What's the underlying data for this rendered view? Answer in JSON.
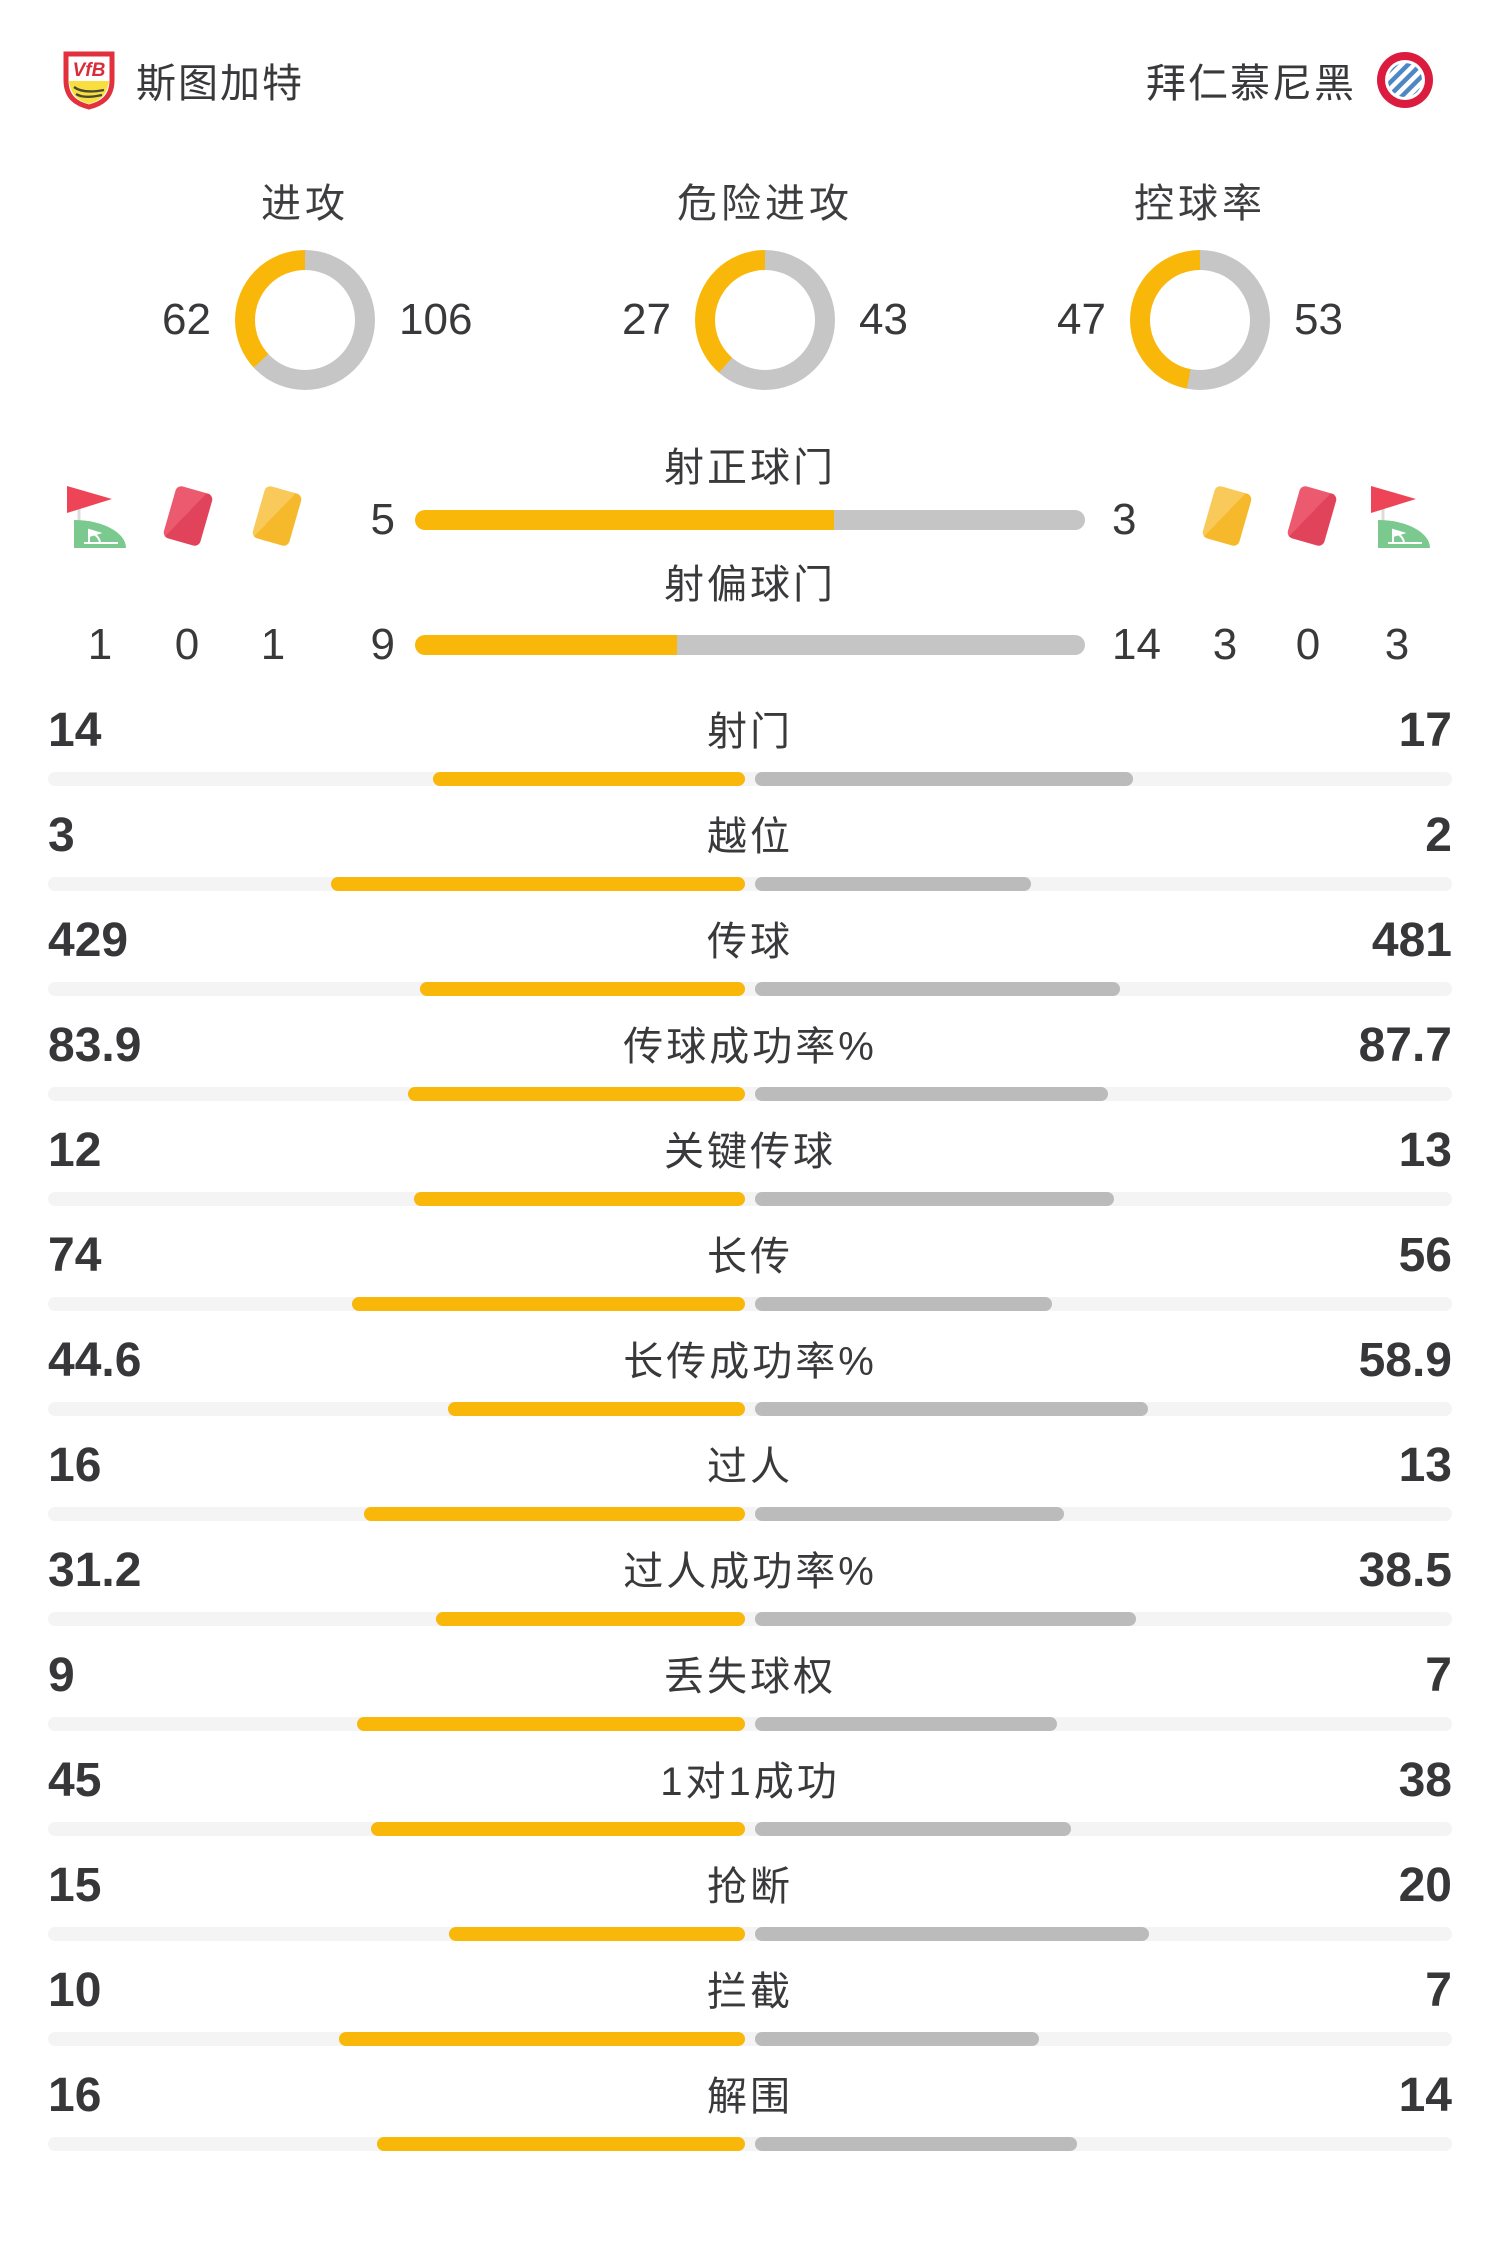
{
  "header": {
    "home_team": "斯图加特",
    "away_team": "拜仁慕尼黑"
  },
  "donuts": [
    {
      "label": "进攻",
      "home": 62,
      "away": 106
    },
    {
      "label": "危险进攻",
      "home": 27,
      "away": 43
    },
    {
      "label": "控球率",
      "home": 47,
      "away": 53
    }
  ],
  "shot_rows": [
    {
      "label": "射正球门",
      "home": 5,
      "away": 3
    },
    {
      "label": "射偏球门",
      "home": 9,
      "away": 14
    }
  ],
  "cards": {
    "home": {
      "corner": 1,
      "red": 0,
      "yellow": 1
    },
    "away": {
      "yellow": 3,
      "red": 0,
      "corner": 3
    }
  },
  "stats": [
    {
      "label": "射门",
      "home": 14,
      "away": 17
    },
    {
      "label": "越位",
      "home": 3,
      "away": 2
    },
    {
      "label": "传球",
      "home": 429,
      "away": 481
    },
    {
      "label": "传球成功率%",
      "home": 83.9,
      "away": 87.7
    },
    {
      "label": "关键传球",
      "home": 12,
      "away": 13
    },
    {
      "label": "长传",
      "home": 74,
      "away": 56
    },
    {
      "label": "长传成功率%",
      "home": 44.6,
      "away": 58.9
    },
    {
      "label": "过人",
      "home": 16,
      "away": 13
    },
    {
      "label": "过人成功率%",
      "home": 31.2,
      "away": 38.5
    },
    {
      "label": "丢失球权",
      "home": 9,
      "away": 7
    },
    {
      "label": "1对1成功",
      "home": 45,
      "away": 38
    },
    {
      "label": "抢断",
      "home": 15,
      "away": 20
    },
    {
      "label": "拦截",
      "home": 10,
      "away": 7
    },
    {
      "label": "解围",
      "home": 16,
      "away": 14
    }
  ],
  "colors": {
    "accent_yellow": "#F9B70A",
    "bar_gray": "#BBBBBB",
    "donut_gray": "#C6C6C6",
    "track_gray": "#F4F4F4",
    "card_red": "#E0435A",
    "card_yellow": "#F5B92B",
    "flag_red": "#ED4557",
    "flag_green": "#7CC98F",
    "text": "#3A3A3C"
  },
  "icons": {
    "home": [
      "corner-flag-icon",
      "red-card-icon",
      "yellow-card-icon"
    ],
    "away": [
      "yellow-card-icon",
      "red-card-icon",
      "corner-flag-icon"
    ]
  },
  "chart_data": [
    {
      "type": "pie",
      "title": "进攻",
      "labels": [
        "斯图加特",
        "拜仁慕尼黑"
      ],
      "values": [
        62,
        106
      ],
      "colors": [
        "#F9B70A",
        "#C6C6C6"
      ]
    },
    {
      "type": "pie",
      "title": "危险进攻",
      "labels": [
        "斯图加特",
        "拜仁慕尼黑"
      ],
      "values": [
        27,
        43
      ],
      "colors": [
        "#F9B70A",
        "#C6C6C6"
      ]
    },
    {
      "type": "pie",
      "title": "控球率",
      "labels": [
        "斯图加特",
        "拜仁慕尼黑"
      ],
      "values": [
        47,
        53
      ],
      "colors": [
        "#F9B70A",
        "#C6C6C6"
      ]
    },
    {
      "type": "bar",
      "title": "比赛数据对比",
      "categories": [
        "射正球门",
        "射偏球门",
        "角球",
        "红牌",
        "黄牌",
        "射门",
        "越位",
        "传球",
        "传球成功率%",
        "关键传球",
        "长传",
        "长传成功率%",
        "过人",
        "过人成功率%",
        "丢失球权",
        "1对1成功",
        "抢断",
        "拦截",
        "解围"
      ],
      "series": [
        {
          "name": "斯图加特",
          "values": [
            5,
            9,
            1,
            0,
            1,
            14,
            3,
            429,
            83.9,
            12,
            74,
            44.6,
            16,
            31.2,
            9,
            45,
            15,
            10,
            16
          ]
        },
        {
          "name": "拜仁慕尼黑",
          "values": [
            3,
            14,
            3,
            0,
            3,
            17,
            2,
            481,
            87.7,
            13,
            56,
            58.9,
            13,
            38.5,
            7,
            38,
            20,
            7,
            14
          ]
        }
      ],
      "legend_position": "none",
      "grid": false
    }
  ]
}
